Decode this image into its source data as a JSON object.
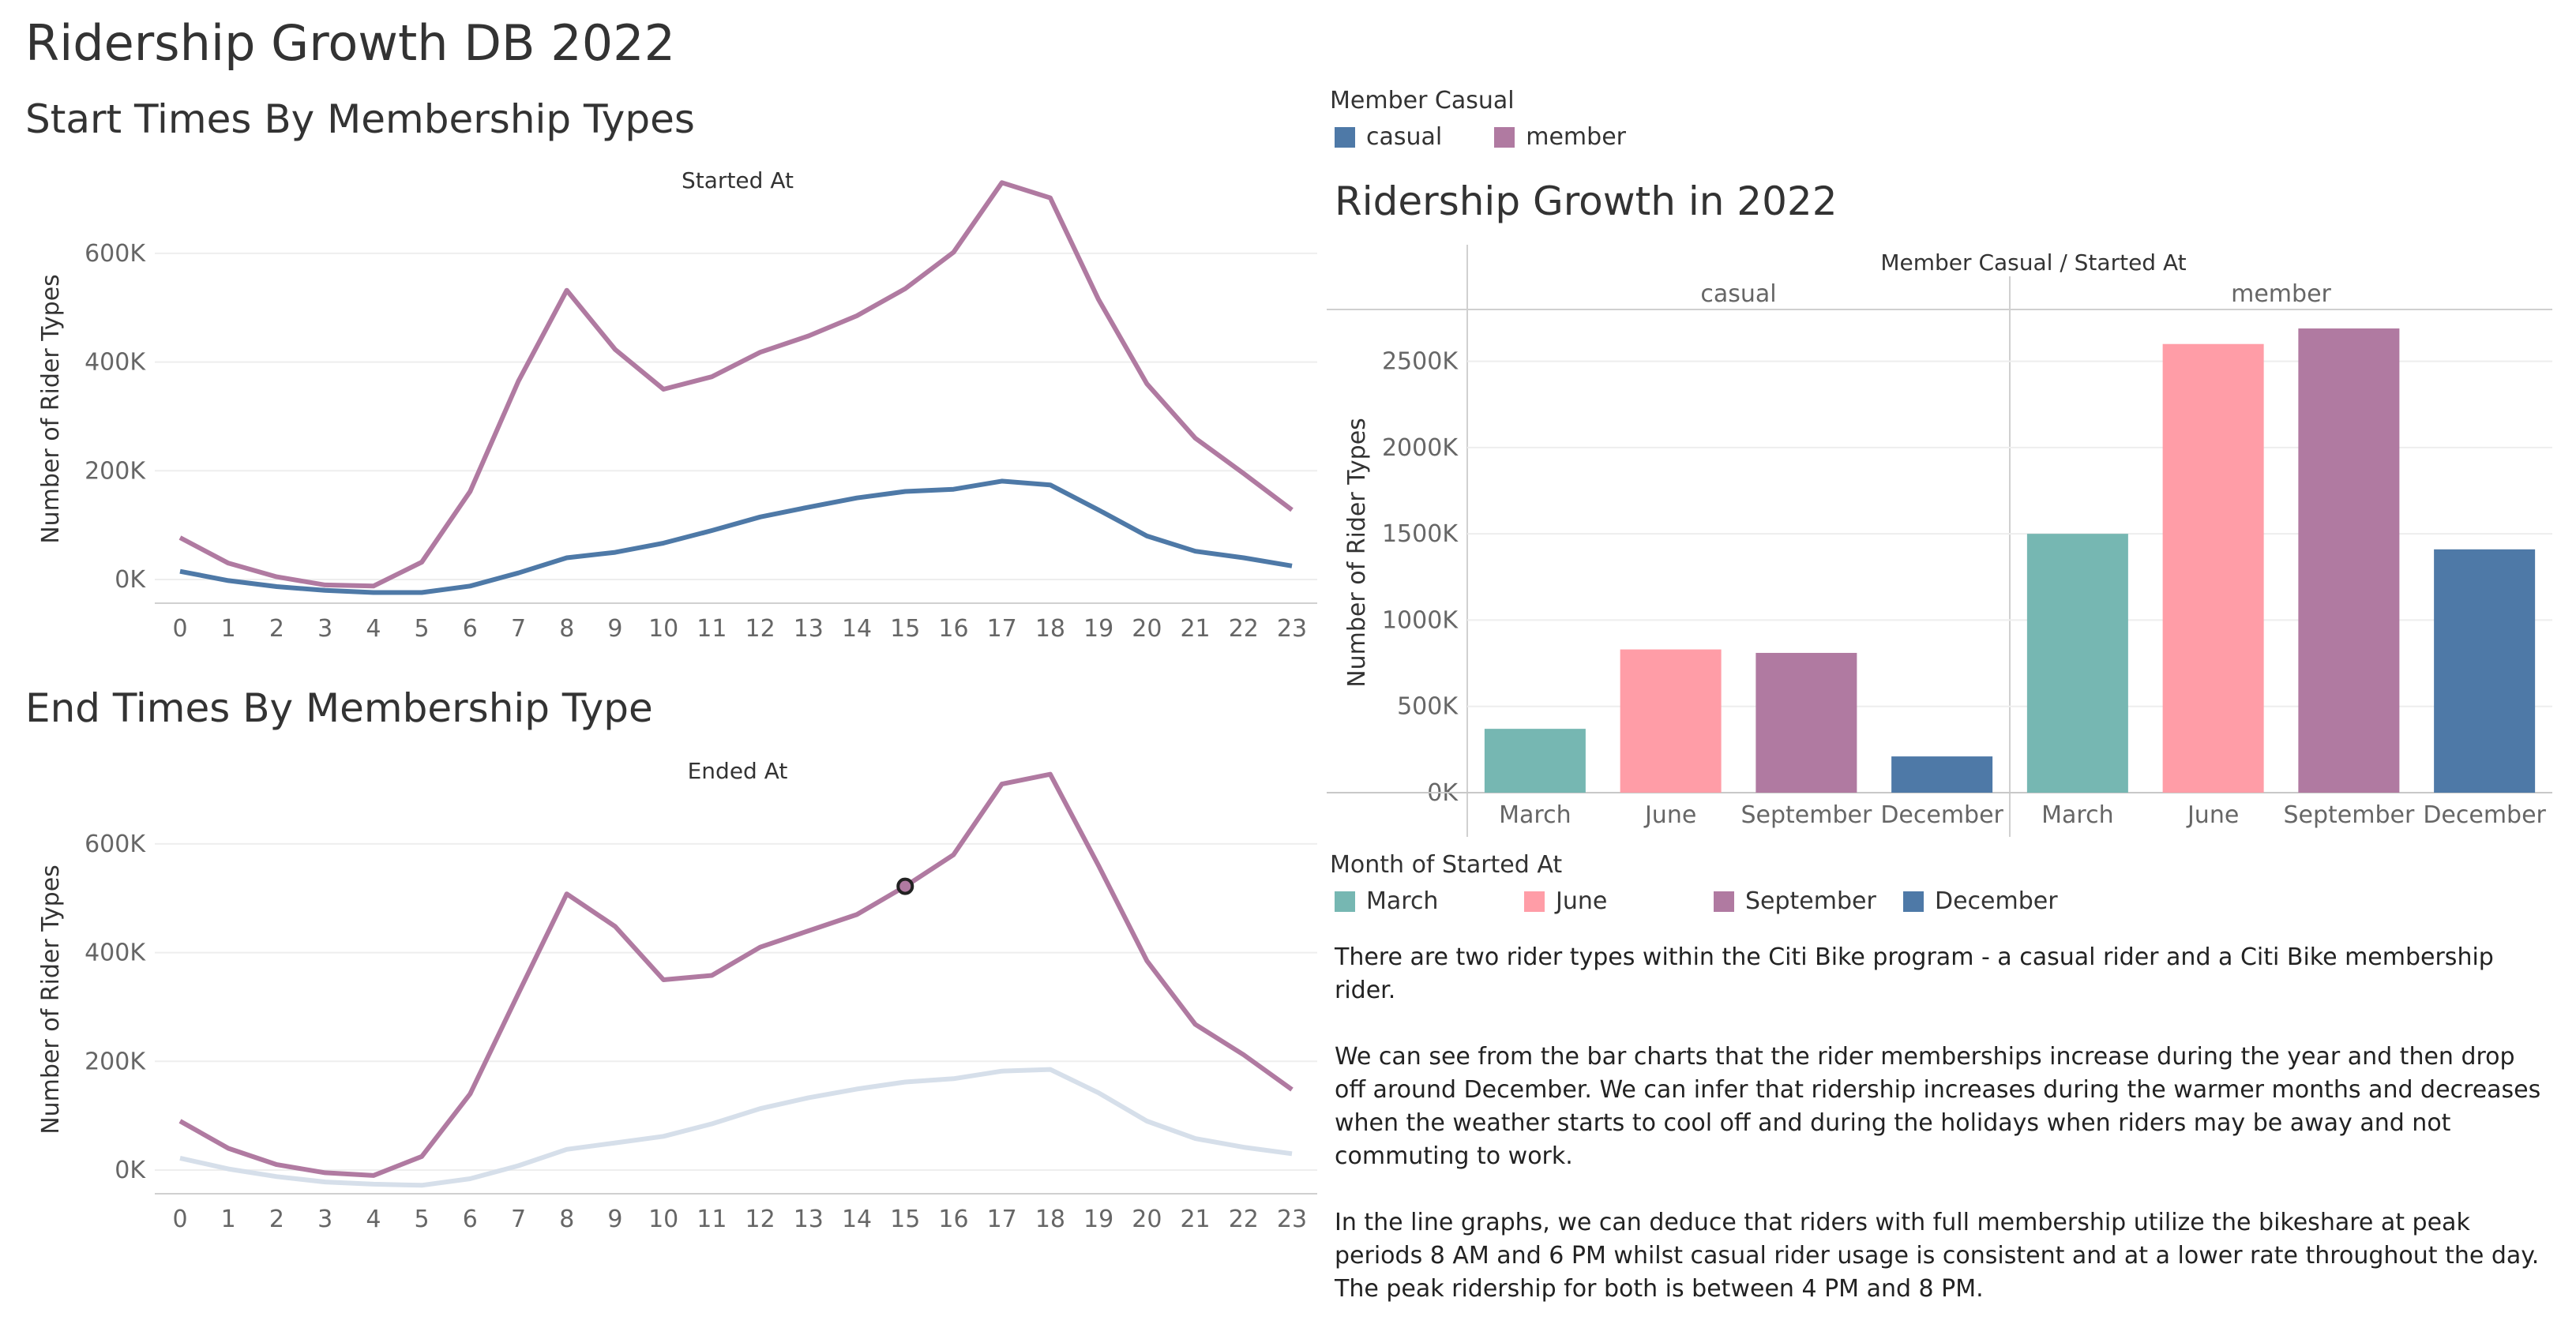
{
  "dashboard_title": "Ridership Growth DB 2022",
  "chart_data": [
    {
      "type": "line",
      "title": "Start Times By Membership Types",
      "subtitle": "Started At",
      "ylabel": "Number of Rider Types",
      "x": [
        0,
        1,
        2,
        3,
        4,
        5,
        6,
        7,
        8,
        9,
        10,
        11,
        12,
        13,
        14,
        15,
        16,
        17,
        18,
        19,
        20,
        21,
        22,
        23
      ],
      "yticks": [
        "0K",
        "200K",
        "400K",
        "600K"
      ],
      "ylim": [
        0,
        700000
      ],
      "series": [
        {
          "name": "casual",
          "color": "#4e79a7",
          "values": [
            15000,
            -2000,
            -13000,
            -20000,
            -24000,
            -24000,
            -12000,
            12000,
            40000,
            50000,
            67000,
            90000,
            115000,
            133000,
            150000,
            162000,
            166000,
            181000,
            174000,
            128000,
            80000,
            52000,
            40000,
            25000
          ]
        },
        {
          "name": "member",
          "color": "#b07aa1",
          "values": [
            77000,
            30000,
            5000,
            -10000,
            -12000,
            32000,
            162000,
            365000,
            532000,
            423000,
            350000,
            373000,
            418000,
            448000,
            485000,
            535000,
            602000,
            730000,
            702000,
            515000,
            360000,
            260000,
            195000,
            128000
          ]
        }
      ]
    },
    {
      "type": "line",
      "title": "End Times By Membership Type",
      "subtitle": "Ended At",
      "ylabel": "Number of Rider Types",
      "x": [
        0,
        1,
        2,
        3,
        4,
        5,
        6,
        7,
        8,
        9,
        10,
        11,
        12,
        13,
        14,
        15,
        16,
        17,
        18,
        19,
        20,
        21,
        22,
        23
      ],
      "yticks": [
        "0K",
        "200K",
        "400K",
        "600K"
      ],
      "ylim": [
        0,
        700000
      ],
      "highlight": {
        "series": "member",
        "x": 15
      },
      "series": [
        {
          "name": "casual",
          "color": "#d6dfea",
          "values": [
            22000,
            2000,
            -12000,
            -22000,
            -26000,
            -28000,
            -16000,
            8000,
            38000,
            50000,
            62000,
            85000,
            113000,
            133000,
            149000,
            162000,
            168000,
            182000,
            185000,
            142000,
            90000,
            58000,
            42000,
            30000
          ]
        },
        {
          "name": "member",
          "color": "#b07aa1",
          "values": [
            90000,
            40000,
            10000,
            -5000,
            -10000,
            25000,
            140000,
            325000,
            508000,
            448000,
            350000,
            358000,
            410000,
            440000,
            470000,
            522000,
            580000,
            710000,
            728000,
            560000,
            385000,
            268000,
            212000,
            148000
          ]
        }
      ]
    },
    {
      "type": "bar",
      "title": "Ridership Growth in 2022",
      "header": "Member Casual  /  Started At",
      "ylabel": "Number of Rider Types",
      "ylim": [
        0,
        2800000
      ],
      "yticks": [
        "0K",
        "500K",
        "1000K",
        "1500K",
        "2000K",
        "2500K"
      ],
      "panels": [
        {
          "name": "casual",
          "categories": [
            "March",
            "June",
            "September",
            "December"
          ],
          "values": [
            370000,
            830000,
            810000,
            210000
          ]
        },
        {
          "name": "member",
          "categories": [
            "March",
            "June",
            "September",
            "December"
          ],
          "values": [
            1500000,
            2600000,
            2690000,
            1410000
          ]
        }
      ]
    }
  ],
  "legend_member": {
    "title": "Member Casual",
    "items": [
      {
        "label": "casual",
        "color": "#4e79a7"
      },
      {
        "label": "member",
        "color": "#b07aa1"
      }
    ]
  },
  "legend_month": {
    "title": "Month of Started At",
    "items": [
      {
        "label": "March",
        "color": "#76b7b2"
      },
      {
        "label": "June",
        "color": "#ff9da7"
      },
      {
        "label": "September",
        "color": "#b07aa1"
      },
      {
        "label": "December",
        "color": "#4e79a7"
      }
    ]
  },
  "notes": [
    "There are two rider types within the Citi Bike program - a casual rider and a Citi Bike membership rider.",
    "We can see from the bar charts that the rider memberships increase during the year and then drop off around December. We can infer that ridership increases during the warmer months and decreases when the weather starts to cool off and during the holidays when riders may be away and not commuting to work.",
    "In the line graphs, we can deduce that riders with full membership utilize the bikeshare at peak periods 8 AM and 6 PM whilst casual rider usage is consistent and at a lower rate throughout the day. The peak ridership for both is between 4 PM and 8 PM."
  ]
}
